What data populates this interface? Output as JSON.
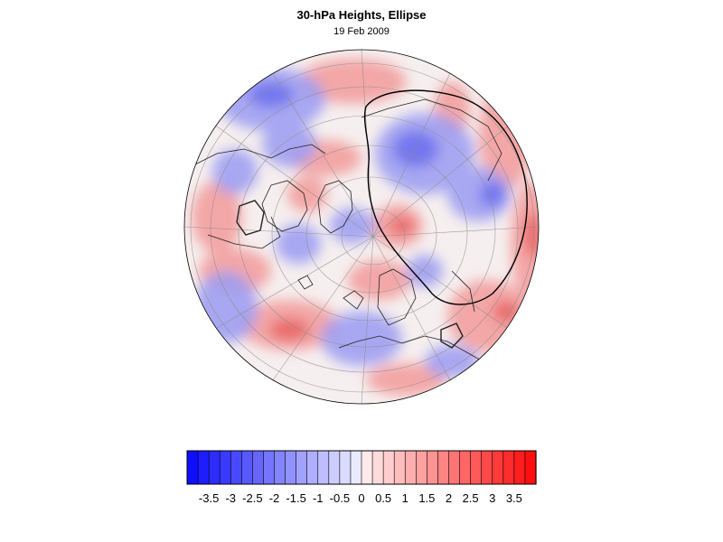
{
  "title": "30-hPa Heights, Ellipse",
  "subtitle": "19 Feb 2009",
  "colorbar": {
    "tick_labels": [
      "-3.5",
      "-3",
      "-2.5",
      "-2",
      "-1.5",
      "-1",
      "-0.5",
      "0",
      "0.5",
      "1",
      "1.5",
      "2",
      "2.5",
      "3",
      "3.5"
    ],
    "colors": [
      "#0f0fff",
      "#1d1dff",
      "#2c2cff",
      "#3a3aff",
      "#4949ff",
      "#5858ff",
      "#6666ff",
      "#7575ff",
      "#8484ff",
      "#9292ff",
      "#a1a1ff",
      "#afafff",
      "#bebeff",
      "#cdcdff",
      "#dbdbff",
      "#eaeaff",
      "#ffeaea",
      "#ffdbdb",
      "#ffcdcd",
      "#ffbebe",
      "#ffafaf",
      "#ffa1a1",
      "#ff9292",
      "#ff8484",
      "#ff7575",
      "#ff6666",
      "#ff5858",
      "#ff4949",
      "#ff3a3a",
      "#ff2c2c",
      "#ff1d1d",
      "#ff0f0f"
    ]
  },
  "map": {
    "projection": "orthographic",
    "hemisphere": "northern"
  }
}
